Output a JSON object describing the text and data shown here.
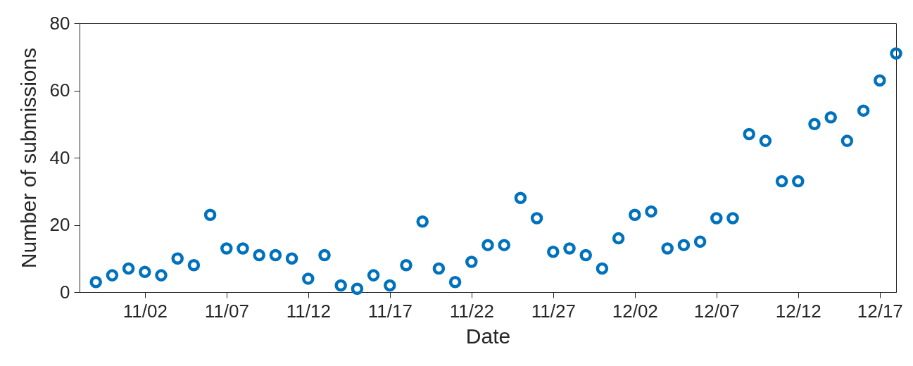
{
  "chart_data": {
    "type": "scatter",
    "xlabel": "Date",
    "ylabel": "Number of submissions",
    "x": [
      "--10-30",
      "--10-31",
      "--11-01",
      "--11-02",
      "--11-03",
      "--11-04",
      "--11-05",
      "--11-06",
      "--11-07",
      "--11-08",
      "--11-09",
      "--11-10",
      "--11-11",
      "--11-12",
      "--11-13",
      "--11-14",
      "--11-15",
      "--11-16",
      "--11-17",
      "--11-18",
      "--11-19",
      "--11-20",
      "--11-21",
      "--11-22",
      "--11-23",
      "--11-24",
      "--11-25",
      "--11-26",
      "--11-27",
      "--11-28",
      "--11-29",
      "--11-30",
      "--12-01",
      "--12-02",
      "--12-03",
      "--12-04",
      "--12-05",
      "--12-06",
      "--12-07",
      "--12-08",
      "--12-09",
      "--12-10",
      "--12-11",
      "--12-12",
      "--12-13",
      "--12-14",
      "--12-15",
      "--12-16",
      "--12-17",
      "--12-18"
    ],
    "series": [
      {
        "color": "#0072bd",
        "values": [
          3,
          5,
          7,
          6,
          5,
          10,
          8,
          23,
          13,
          13,
          11,
          11,
          10,
          4,
          11,
          2,
          1,
          5,
          2,
          8,
          21,
          7,
          3,
          9,
          14,
          14,
          28,
          22,
          12,
          13,
          11,
          7,
          16,
          23,
          24,
          13,
          14,
          15,
          22,
          22,
          47,
          45,
          33,
          33,
          50,
          52,
          45,
          54,
          63,
          71
        ]
      }
    ],
    "xlim": [
      "--10-29",
      "--12-18"
    ],
    "xticks": [
      {
        "value": "--11-02",
        "label": "11/02"
      },
      {
        "value": "--11-07",
        "label": "11/07"
      },
      {
        "value": "--11-12",
        "label": "11/12"
      },
      {
        "value": "--11-17",
        "label": "11/17"
      },
      {
        "value": "--11-22",
        "label": "11/22"
      },
      {
        "value": "--11-27",
        "label": "11/27"
      },
      {
        "value": "--12-02",
        "label": "12/02"
      },
      {
        "value": "--12-07",
        "label": "12/07"
      },
      {
        "value": "--12-12",
        "label": "12/12"
      },
      {
        "value": "--12-17",
        "label": "12/17"
      }
    ],
    "ylim": [
      0,
      80
    ],
    "yticks": [
      0,
      20,
      40,
      60,
      80
    ],
    "grid": false,
    "marker": "circle"
  }
}
